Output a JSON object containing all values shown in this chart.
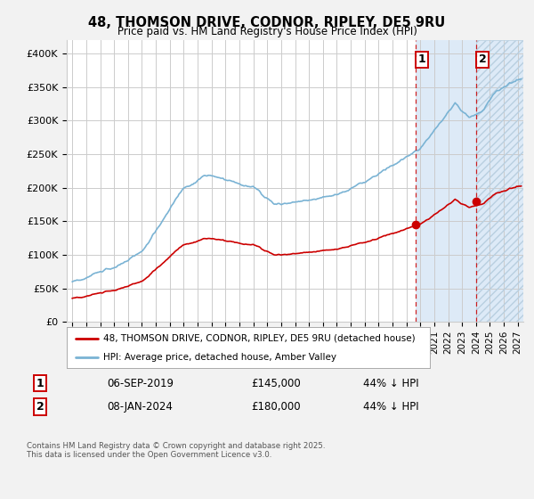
{
  "title": "48, THOMSON DRIVE, CODNOR, RIPLEY, DE5 9RU",
  "subtitle": "Price paid vs. HM Land Registry's House Price Index (HPI)",
  "background_color": "#f2f2f2",
  "plot_bg_color": "#ffffff",
  "hpi_color": "#7ab3d4",
  "property_color": "#cc0000",
  "vline_color": "#cc0000",
  "highlight_bg_color": "#ddeaf7",
  "ylim": [
    0,
    420000
  ],
  "yticks": [
    0,
    50000,
    100000,
    150000,
    200000,
    250000,
    300000,
    350000,
    400000
  ],
  "ytick_labels": [
    "£0",
    "£50K",
    "£100K",
    "£150K",
    "£200K",
    "£250K",
    "£300K",
    "£350K",
    "£400K"
  ],
  "xlim_start": 1994.6,
  "xlim_end": 2027.4,
  "xticks": [
    1995,
    1996,
    1997,
    1998,
    1999,
    2000,
    2001,
    2002,
    2003,
    2004,
    2005,
    2006,
    2007,
    2008,
    2009,
    2010,
    2011,
    2012,
    2013,
    2014,
    2015,
    2016,
    2017,
    2018,
    2019,
    2020,
    2021,
    2022,
    2023,
    2024,
    2025,
    2026,
    2027
  ],
  "sale1_year": 2019.67,
  "sale1_price": 145000,
  "sale1_label": "1",
  "sale2_year": 2024.03,
  "sale2_price": 180000,
  "sale2_label": "2",
  "legend_property": "48, THOMSON DRIVE, CODNOR, RIPLEY, DE5 9RU (detached house)",
  "legend_hpi": "HPI: Average price, detached house, Amber Valley",
  "table_row1": [
    "1",
    "06-SEP-2019",
    "£145,000",
    "44% ↓ HPI"
  ],
  "table_row2": [
    "2",
    "08-JAN-2024",
    "£180,000",
    "44% ↓ HPI"
  ],
  "footnote": "Contains HM Land Registry data © Crown copyright and database right 2025.\nThis data is licensed under the Open Government Licence v3.0.",
  "highlight_start": 2019.67,
  "highlight_end": 2024.03,
  "hatch_start": 2024.03,
  "hatch_end": 2027.4
}
